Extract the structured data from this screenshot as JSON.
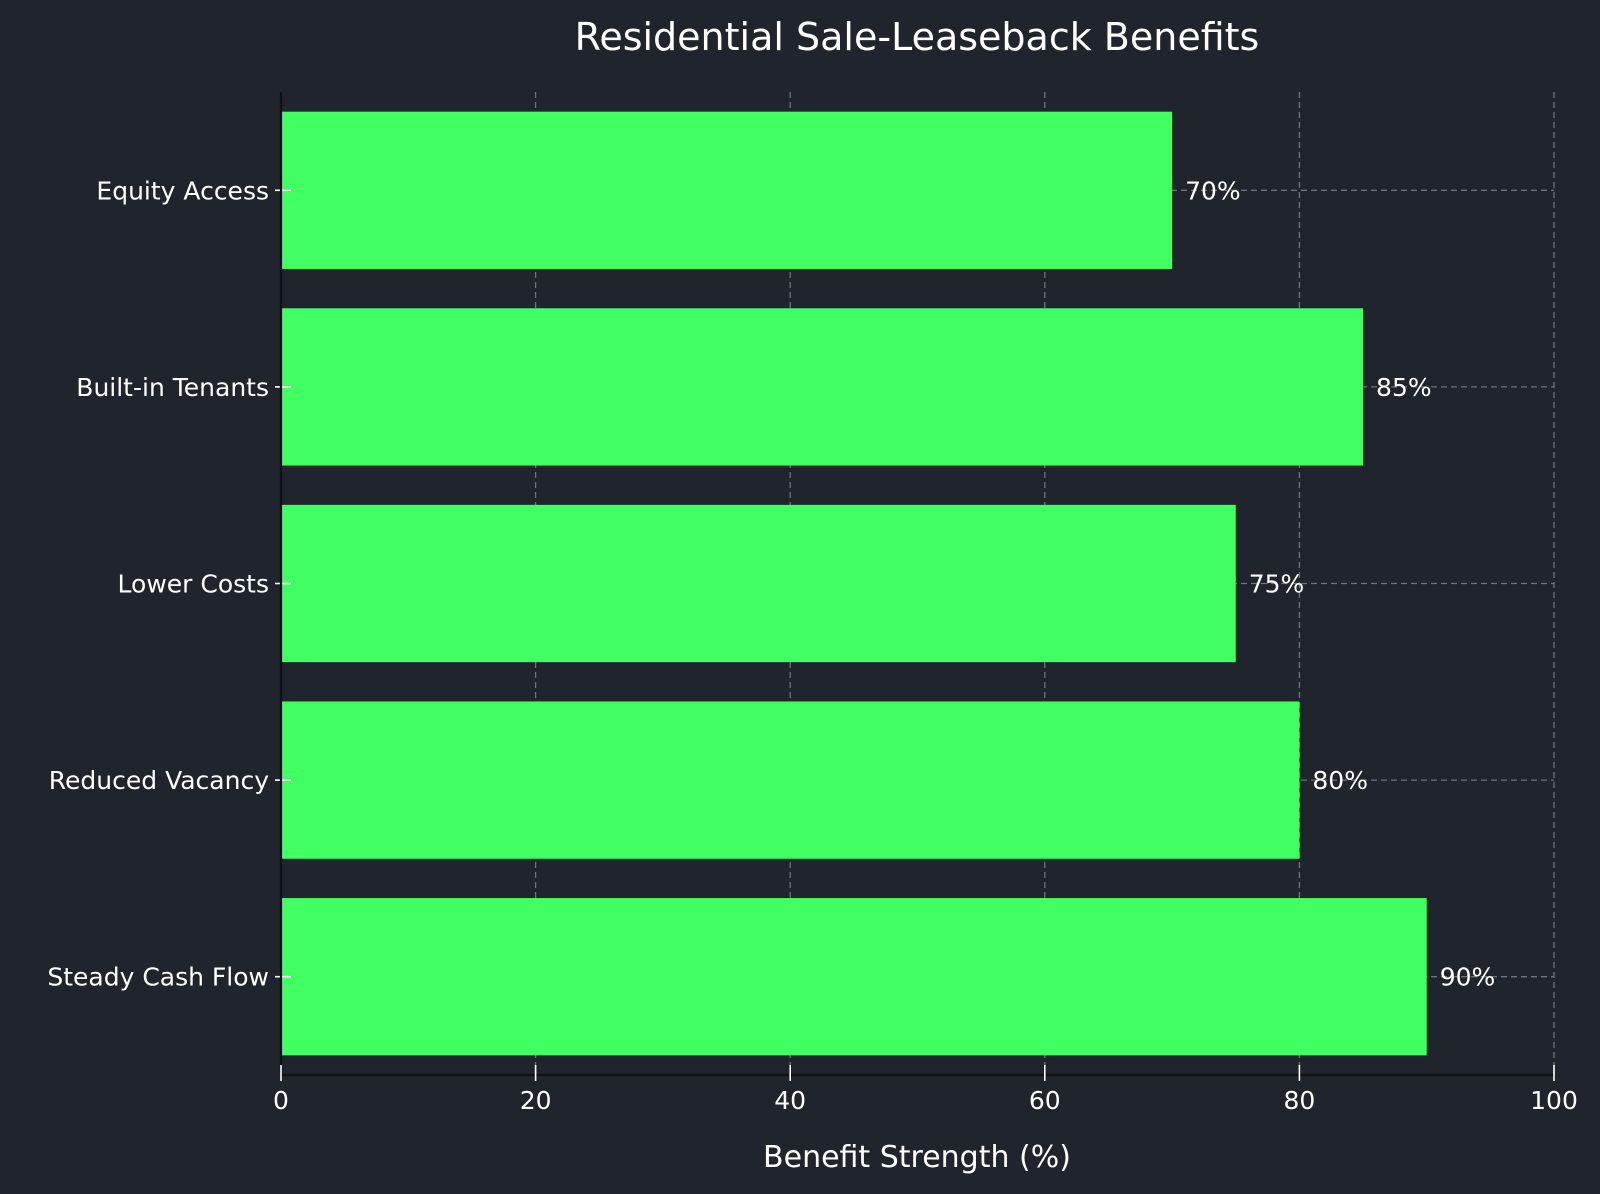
{
  "chart_data": {
    "type": "bar",
    "orientation": "horizontal",
    "title": "Residential Sale-Leaseback Benefits",
    "xlabel": "Benefit Strength (%)",
    "ylabel": "",
    "xlim": [
      0,
      100
    ],
    "xticks": [
      0,
      20,
      40,
      60,
      80,
      100
    ],
    "grid": true,
    "categories": [
      "Steady Cash Flow",
      "Reduced Vacancy",
      "Lower Costs",
      "Built-in Tenants",
      "Equity Access"
    ],
    "values": [
      90,
      80,
      75,
      85,
      70
    ],
    "value_labels": [
      "90%",
      "80%",
      "75%",
      "85%",
      "70%"
    ],
    "colors": {
      "background": "#1f242d",
      "bar": "#41ff63",
      "text": "#ffffff",
      "grid": "#6f737a"
    }
  }
}
